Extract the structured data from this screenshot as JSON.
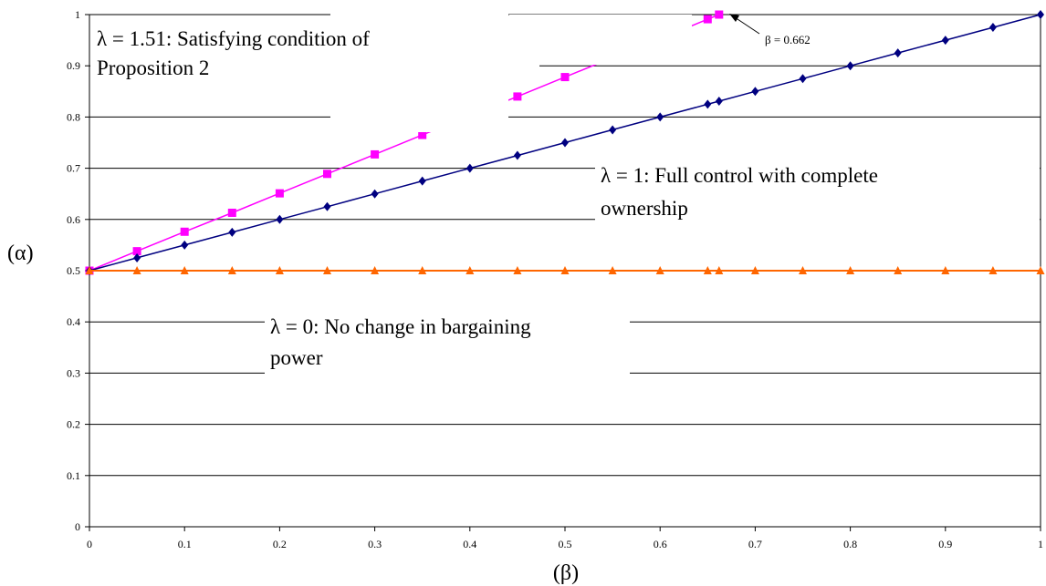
{
  "chart_data": {
    "type": "line",
    "xlabel": "(β)",
    "ylabel": "(α)",
    "xlim": [
      0,
      1
    ],
    "ylim": [
      0,
      1
    ],
    "x_ticks": [
      "0",
      "0.1",
      "0.2",
      "0.3",
      "0.4",
      "0.5",
      "0.6",
      "0.7",
      "0.8",
      "0.9",
      "1"
    ],
    "y_ticks": [
      "0",
      "0.1",
      "0.2",
      "0.3",
      "0.4",
      "0.5",
      "0.6",
      "0.7",
      "0.8",
      "0.9",
      "1"
    ],
    "grid": "horizontal",
    "series": [
      {
        "color": "#ff00ff",
        "marker": "square",
        "x": [
          0,
          0.05,
          0.1,
          0.15,
          0.2,
          0.25,
          0.3,
          0.35,
          0.45,
          0.5,
          0.55,
          0.6,
          0.65,
          0.662
        ],
        "y": [
          0.5,
          0.538,
          0.576,
          0.613,
          0.651,
          0.689,
          0.727,
          0.765,
          0.84,
          0.878,
          0.916,
          0.953,
          0.991,
          1.0
        ]
      },
      {
        "color": "#000080",
        "marker": "diamond",
        "x": [
          0,
          0.05,
          0.1,
          0.15,
          0.2,
          0.25,
          0.3,
          0.35,
          0.4,
          0.45,
          0.5,
          0.55,
          0.6,
          0.65,
          0.662,
          0.7,
          0.75,
          0.8,
          0.85,
          0.9,
          0.95,
          1.0
        ],
        "y": [
          0.5,
          0.525,
          0.55,
          0.575,
          0.6,
          0.625,
          0.65,
          0.675,
          0.7,
          0.725,
          0.75,
          0.775,
          0.8,
          0.825,
          0.831,
          0.85,
          0.875,
          0.9,
          0.925,
          0.95,
          0.975,
          1.0
        ]
      },
      {
        "color": "#ff6600",
        "marker": "triangle",
        "x": [
          0,
          0.05,
          0.1,
          0.15,
          0.2,
          0.25,
          0.3,
          0.35,
          0.4,
          0.45,
          0.5,
          0.55,
          0.6,
          0.65,
          0.662,
          0.7,
          0.75,
          0.8,
          0.85,
          0.9,
          0.95,
          1.0
        ],
        "y": [
          0.5,
          0.5,
          0.5,
          0.5,
          0.5,
          0.5,
          0.5,
          0.5,
          0.5,
          0.5,
          0.5,
          0.5,
          0.5,
          0.5,
          0.5,
          0.5,
          0.5,
          0.5,
          0.5,
          0.5,
          0.5,
          0.5
        ]
      }
    ],
    "annotations": [
      {
        "lines": [
          "λ = 1.51: Satisfying condition of",
          "Proposition 2"
        ]
      },
      {
        "lines": [
          "λ = 1: Full control with complete",
          "ownership"
        ]
      },
      {
        "lines": [
          "λ = 0: No change in bargaining",
          "power"
        ]
      },
      {
        "lines": [
          "β = 0.662"
        ]
      }
    ]
  }
}
